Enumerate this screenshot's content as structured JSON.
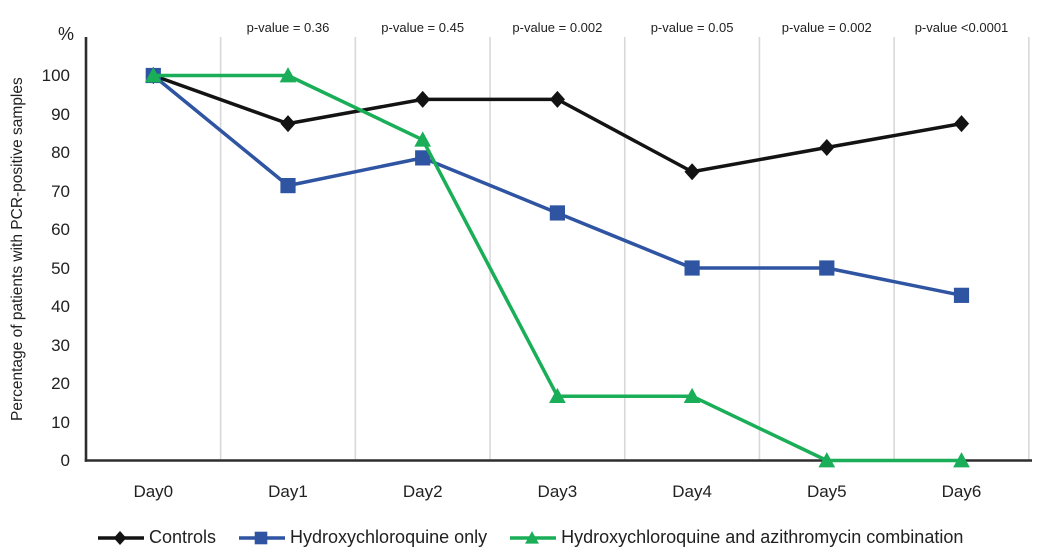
{
  "chart_data": {
    "type": "line",
    "title": "",
    "categories": [
      "Day0",
      "Day1",
      "Day2",
      "Day3",
      "Day4",
      "Day5",
      "Day6"
    ],
    "series": [
      {
        "name": "Controls",
        "marker": "diamond",
        "color": "#131313",
        "values": [
          100,
          87.5,
          93.8,
          93.8,
          75,
          81.3,
          87.5
        ]
      },
      {
        "name": "Hydroxychloroquine only",
        "marker": "square",
        "color": "#2f54a2",
        "values": [
          100,
          71.4,
          78.6,
          64.3,
          50,
          50,
          42.9
        ]
      },
      {
        "name": "Hydroxychloroquine and azithromycin combination",
        "marker": "triangle",
        "color": "#19ae57",
        "values": [
          100,
          100,
          83.3,
          16.7,
          16.7,
          0,
          0
        ]
      }
    ],
    "p_values": [
      {
        "category": "Day1",
        "label": "p-value = 0.36"
      },
      {
        "category": "Day2",
        "label": "p-value = 0.45"
      },
      {
        "category": "Day3",
        "label": "p-value = 0.002"
      },
      {
        "category": "Day4",
        "label": "p-value = 0.05"
      },
      {
        "category": "Day5",
        "label": "p-value = 0.002"
      },
      {
        "category": "Day6",
        "label": "p-value <0.0001"
      }
    ],
    "xlabel": "",
    "ylabel": "Percentage of patients with PCR-positive samples",
    "y_unit": "%",
    "y_ticks": [
      0,
      10,
      20,
      30,
      40,
      50,
      60,
      70,
      80,
      90,
      100
    ],
    "ylim": [
      0,
      100
    ],
    "grid": "vertical-category-separators",
    "legend_position": "bottom",
    "colors": {
      "axis": "#2e2e2e",
      "gridline": "#d8d8d8",
      "text": "#212121",
      "background": "#ffffff"
    }
  }
}
